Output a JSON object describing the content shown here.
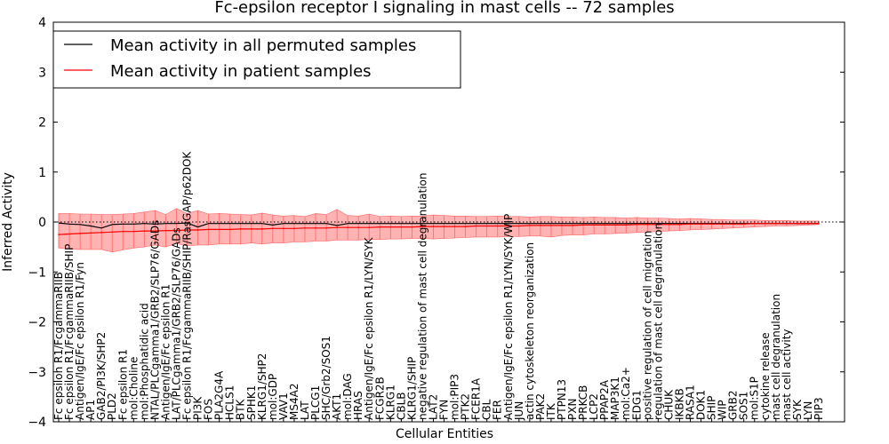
{
  "chart_data": {
    "type": "line",
    "title": "Fc-epsilon receptor I signaling in mast cells -- 72 samples",
    "xlabel": "Cellular Entities",
    "ylabel": "Inferred Activity",
    "ylim": [
      -4,
      4
    ],
    "yticks": [
      -4,
      -3,
      -2,
      -1,
      0,
      1,
      2,
      3,
      4
    ],
    "grid": false,
    "legend_position": "top-left",
    "series": [
      {
        "name": "Mean activity in all permuted samples",
        "color": "#000000"
      },
      {
        "name": "Mean activity in patient samples",
        "color": "#ff0000"
      }
    ],
    "categories": [
      "Fc epsilon R1/FcgammaRIIB",
      "Fc epsilon R1/FcgammaRIIB/SHIP",
      "Antigen/IgE/Fc epsilon R1/Fyn",
      "AP1",
      "GAB2/PI3K/SHP2",
      "PLD2",
      "Fc epsilon R1",
      "mol:Choline",
      "mol:Phosphatidic acid",
      "NTAL/PLCgamma1/GRB2/SLP76/GADs",
      "Antigen/IgE/Fc epsilon R1",
      "LAT/PLCgamma1/GRB2/SLP76/GADs",
      "Fc epsilon R1/FcgammaRIIB/SHIP/RasGAP/p62DOK",
      "PI3K",
      "FOS",
      "PLA2G4A",
      "HCLS1",
      "BTK",
      "SPHK1",
      "KLRG1/SHP2",
      "mol:GDP",
      "VAV1",
      "MS4A2",
      "LAT",
      "PLCG1",
      "SHC/Grb2/SOS1",
      "AKT1",
      "mol:DAG",
      "HRAS",
      "Antigen/IgE/Fc epsilon R1/LYN/SYK",
      "FCGR2B",
      "KLRG1",
      "CBLB",
      "KLRG1/SHIP",
      "negative regulation of mast cell degranulation",
      "LAT2",
      "FYN",
      "mol:PIP3",
      "PTK2",
      "FCER1A",
      "CBL",
      "FER",
      "Antigen/IgE/Fc epsilon R1/LYN/SYK/WIP",
      "JUN",
      "actin cytoskeleton reorganization",
      "PAK2",
      "ITK",
      "PTPN13",
      "PXN",
      "PRKCB",
      "LCP2",
      "PPAP2A",
      "MAP3K1",
      "mol:Ca2+",
      "EDG1",
      "positive regulation of cell migration",
      "regulation of mast cell degranulation",
      "CHUK",
      "IKBKB",
      "RASA1",
      "DOK1",
      "SHIP",
      "WIP",
      "GRB2",
      "SOS1",
      "mol:S1P",
      "cytokine release",
      "mast cell degranulation",
      "mast cell activity",
      "SYK",
      "LYN",
      "PIP3"
    ],
    "x": [
      0,
      1,
      2,
      3,
      4,
      5,
      6,
      7,
      8,
      9,
      10,
      11,
      12,
      13,
      14,
      15,
      16,
      17,
      18,
      19,
      20,
      21,
      22,
      23,
      24,
      25,
      26,
      27,
      28,
      29,
      30,
      31,
      32,
      33,
      34,
      35,
      36,
      37,
      38,
      39,
      40,
      41,
      42,
      43,
      44,
      45,
      46,
      47,
      48,
      49,
      50,
      51,
      52,
      53,
      54,
      55,
      56,
      57,
      58,
      59,
      60,
      61,
      62,
      63,
      64,
      65,
      66,
      67,
      68,
      69,
      70,
      71
    ],
    "permuted_mean": [
      -0.02,
      -0.04,
      -0.05,
      -0.08,
      -0.12,
      -0.05,
      -0.04,
      -0.04,
      -0.03,
      -0.04,
      -0.03,
      -0.03,
      -0.02,
      -0.1,
      -0.03,
      -0.03,
      -0.03,
      -0.03,
      -0.03,
      -0.03,
      -0.06,
      -0.03,
      -0.03,
      -0.03,
      -0.03,
      -0.03,
      -0.07,
      -0.03,
      -0.03,
      -0.03,
      -0.03,
      -0.03,
      -0.03,
      -0.03,
      -0.03,
      -0.03,
      -0.03,
      -0.03,
      -0.03,
      -0.03,
      -0.03,
      -0.03,
      -0.03,
      -0.03,
      -0.03,
      -0.03,
      -0.03,
      -0.03,
      -0.03,
      -0.03,
      -0.03,
      -0.03,
      -0.03,
      -0.03,
      -0.03,
      -0.03,
      -0.03,
      -0.03,
      -0.03,
      -0.03,
      -0.03,
      -0.03,
      -0.03,
      -0.03,
      -0.03,
      -0.03,
      -0.03,
      -0.03,
      -0.03,
      -0.03,
      -0.03,
      -0.03
    ],
    "patient_mean": [
      -0.25,
      -0.24,
      -0.23,
      -0.22,
      -0.21,
      -0.2,
      -0.19,
      -0.19,
      -0.18,
      -0.18,
      -0.17,
      -0.17,
      -0.16,
      -0.16,
      -0.15,
      -0.15,
      -0.15,
      -0.14,
      -0.14,
      -0.14,
      -0.13,
      -0.13,
      -0.13,
      -0.12,
      -0.12,
      -0.12,
      -0.11,
      -0.11,
      -0.11,
      -0.11,
      -0.1,
      -0.1,
      -0.1,
      -0.1,
      -0.09,
      -0.09,
      -0.09,
      -0.09,
      -0.09,
      -0.08,
      -0.08,
      -0.08,
      -0.08,
      -0.08,
      -0.07,
      -0.07,
      -0.07,
      -0.07,
      -0.07,
      -0.06,
      -0.06,
      -0.06,
      -0.06,
      -0.06,
      -0.05,
      -0.05,
      -0.05,
      -0.05,
      -0.05,
      -0.04,
      -0.04,
      -0.04,
      -0.04,
      -0.04,
      -0.04,
      -0.03,
      -0.03,
      -0.03,
      -0.03,
      -0.03,
      -0.03,
      -0.03
    ],
    "patient_upper": [
      0.17,
      0.17,
      0.16,
      0.16,
      0.15,
      0.15,
      0.16,
      0.17,
      0.2,
      0.23,
      0.15,
      0.27,
      0.17,
      0.23,
      0.16,
      0.17,
      0.16,
      0.15,
      0.14,
      0.18,
      0.14,
      0.12,
      0.13,
      0.11,
      0.17,
      0.15,
      0.25,
      0.13,
      0.12,
      0.16,
      0.11,
      0.12,
      0.11,
      0.12,
      0.12,
      0.14,
      0.13,
      0.12,
      0.12,
      0.11,
      0.11,
      0.12,
      0.11,
      0.11,
      0.1,
      0.11,
      0.11,
      0.1,
      0.1,
      0.09,
      0.1,
      0.09,
      0.09,
      0.08,
      0.09,
      0.08,
      0.08,
      0.07,
      0.06,
      0.07,
      0.06,
      0.05,
      0.05,
      0.04,
      0.04,
      0.04,
      0.03,
      0.03,
      0.03,
      0.02,
      0.02,
      0.02
    ],
    "patient_lower": [
      -0.52,
      -0.54,
      -0.55,
      -0.55,
      -0.55,
      -0.6,
      -0.56,
      -0.52,
      -0.5,
      -0.46,
      -0.5,
      -0.43,
      -0.48,
      -0.46,
      -0.46,
      -0.44,
      -0.44,
      -0.44,
      -0.42,
      -0.44,
      -0.42,
      -0.42,
      -0.4,
      -0.4,
      -0.38,
      -0.38,
      -0.36,
      -0.36,
      -0.36,
      -0.35,
      -0.35,
      -0.34,
      -0.34,
      -0.33,
      -0.33,
      -0.34,
      -0.33,
      -0.32,
      -0.31,
      -0.3,
      -0.3,
      -0.3,
      -0.29,
      -0.29,
      -0.28,
      -0.28,
      -0.3,
      -0.27,
      -0.26,
      -0.26,
      -0.24,
      -0.24,
      -0.23,
      -0.22,
      -0.21,
      -0.2,
      -0.19,
      -0.18,
      -0.17,
      -0.16,
      -0.15,
      -0.14,
      -0.13,
      -0.12,
      -0.11,
      -0.1,
      -0.09,
      -0.08,
      -0.08,
      -0.07,
      -0.06,
      -0.05
    ]
  }
}
